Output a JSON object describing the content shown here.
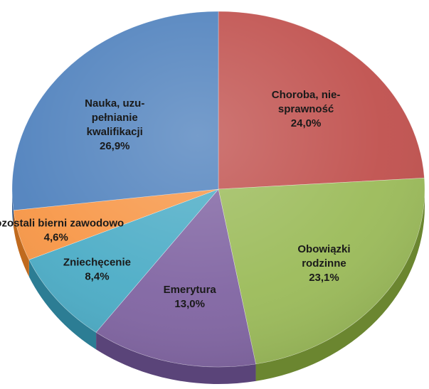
{
  "chart_data": {
    "type": "pie",
    "title": "",
    "start_angle_deg": 0,
    "direction": "clockwise",
    "slices": [
      {
        "label": "Choroba, nie-sprawność",
        "label_lines": [
          "Choroba, nie-",
          "sprawność"
        ],
        "value": 24.0,
        "value_text": "24,0%",
        "color": "#c0504d",
        "side_color": "#8e3533"
      },
      {
        "label": "Obowiązki rodzinne",
        "label_lines": [
          "Obowiązki",
          "rodzinne"
        ],
        "value": 23.1,
        "value_text": "23,1%",
        "color": "#9bbb59",
        "side_color": "#6b8630"
      },
      {
        "label": "Emerytura",
        "label_lines": [
          "Emerytura"
        ],
        "value": 13.0,
        "value_text": "13,0%",
        "color": "#8064a2",
        "side_color": "#5a4479"
      },
      {
        "label": "Zniechęcenie",
        "label_lines": [
          "Zniechęcenie"
        ],
        "value": 8.4,
        "value_text": "8,4%",
        "color": "#4bacc6",
        "side_color": "#2c7d94"
      },
      {
        "label": "Pozostali bierni zawodowo",
        "label_lines": [
          "Pozostali bierni zawodowo"
        ],
        "value": 4.6,
        "value_text": "4,6%",
        "color": "#f79646",
        "side_color": "#c06a1e"
      },
      {
        "label": "Nauka, uzupełnianie kwalifikacji",
        "label_lines": [
          "Nauka, uzu-",
          "pełnianie",
          "kwalifikacji"
        ],
        "value": 26.9,
        "value_text": "26,9%",
        "color": "#4f81bd",
        "side_color": "#2f5a8f"
      }
    ]
  }
}
